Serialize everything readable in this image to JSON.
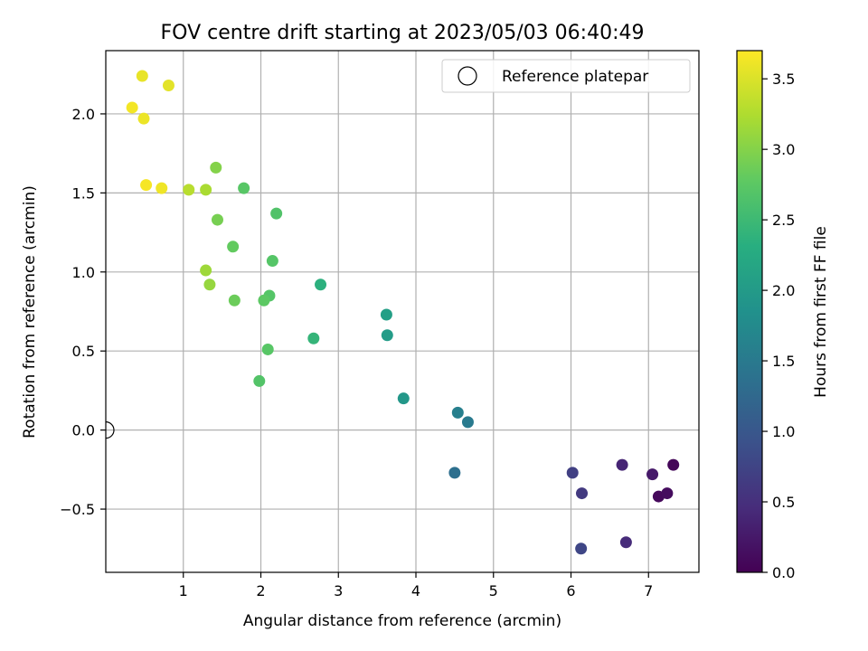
{
  "chart_data": {
    "type": "scatter",
    "title": "FOV centre drift starting at 2023/05/03 06:40:49",
    "xlabel": "Angular distance from reference (arcmin)",
    "ylabel": "Rotation from reference (arcmin)",
    "xlim": [
      0,
      7.65
    ],
    "ylim": [
      -0.9,
      2.4
    ],
    "xticks": [
      1,
      2,
      3,
      4,
      5,
      6,
      7
    ],
    "yticks": [
      -0.5,
      0.0,
      0.5,
      1.0,
      1.5,
      2.0
    ],
    "ytick_labels": [
      "−0.5",
      "0.0",
      "0.5",
      "1.0",
      "1.5",
      "2.0"
    ],
    "grid": true,
    "legend": {
      "placement": "top-right",
      "entries": [
        "Reference platepar"
      ]
    },
    "reference_point": {
      "x": 0.0,
      "y": 0.0
    },
    "colorbar": {
      "label": "Hours from first FF file",
      "colormap": "viridis",
      "range": [
        0.0,
        3.7
      ],
      "ticks": [
        0.0,
        0.5,
        1.0,
        1.5,
        2.0,
        2.5,
        3.0,
        3.5
      ],
      "tick_labels": [
        "0.0",
        "0.5",
        "1.0",
        "1.5",
        "2.0",
        "2.5",
        "3.0",
        "3.5"
      ]
    },
    "points": [
      {
        "x": 7.32,
        "y": -0.22,
        "c": 0.05
      },
      {
        "x": 7.13,
        "y": -0.42,
        "c": 0.08
      },
      {
        "x": 7.24,
        "y": -0.4,
        "c": 0.12
      },
      {
        "x": 7.05,
        "y": -0.28,
        "c": 0.25
      },
      {
        "x": 6.66,
        "y": -0.22,
        "c": 0.38
      },
      {
        "x": 6.71,
        "y": -0.71,
        "c": 0.45
      },
      {
        "x": 6.14,
        "y": -0.4,
        "c": 0.62
      },
      {
        "x": 6.02,
        "y": -0.27,
        "c": 0.7
      },
      {
        "x": 6.13,
        "y": -0.75,
        "c": 0.78
      },
      {
        "x": 4.5,
        "y": -0.27,
        "c": 1.35
      },
      {
        "x": 4.67,
        "y": 0.05,
        "c": 1.5
      },
      {
        "x": 4.54,
        "y": 0.11,
        "c": 1.58
      },
      {
        "x": 3.84,
        "y": 0.2,
        "c": 1.95
      },
      {
        "x": 3.63,
        "y": 0.6,
        "c": 2.02
      },
      {
        "x": 3.62,
        "y": 0.73,
        "c": 2.08
      },
      {
        "x": 2.77,
        "y": 0.92,
        "c": 2.35
      },
      {
        "x": 2.68,
        "y": 0.58,
        "c": 2.42
      },
      {
        "x": 1.98,
        "y": 0.31,
        "c": 2.68
      },
      {
        "x": 2.09,
        "y": 0.51,
        "c": 2.72
      },
      {
        "x": 2.11,
        "y": 0.85,
        "c": 2.7
      },
      {
        "x": 2.04,
        "y": 0.82,
        "c": 2.76
      },
      {
        "x": 2.15,
        "y": 1.07,
        "c": 2.7
      },
      {
        "x": 2.2,
        "y": 1.37,
        "c": 2.66
      },
      {
        "x": 1.66,
        "y": 0.82,
        "c": 2.85
      },
      {
        "x": 1.64,
        "y": 1.16,
        "c": 2.8
      },
      {
        "x": 1.78,
        "y": 1.53,
        "c": 2.72
      },
      {
        "x": 1.44,
        "y": 1.33,
        "c": 2.92
      },
      {
        "x": 1.42,
        "y": 1.66,
        "c": 3.0
      },
      {
        "x": 1.34,
        "y": 0.92,
        "c": 3.1
      },
      {
        "x": 1.29,
        "y": 1.01,
        "c": 3.15
      },
      {
        "x": 1.29,
        "y": 1.52,
        "c": 3.22
      },
      {
        "x": 1.07,
        "y": 1.52,
        "c": 3.3
      },
      {
        "x": 0.72,
        "y": 1.53,
        "c": 3.62
      },
      {
        "x": 0.52,
        "y": 1.55,
        "c": 3.66
      },
      {
        "x": 0.49,
        "y": 1.97,
        "c": 3.6
      },
      {
        "x": 0.34,
        "y": 2.04,
        "c": 3.64
      },
      {
        "x": 0.47,
        "y": 2.24,
        "c": 3.58
      },
      {
        "x": 0.81,
        "y": 2.18,
        "c": 3.55
      }
    ]
  }
}
